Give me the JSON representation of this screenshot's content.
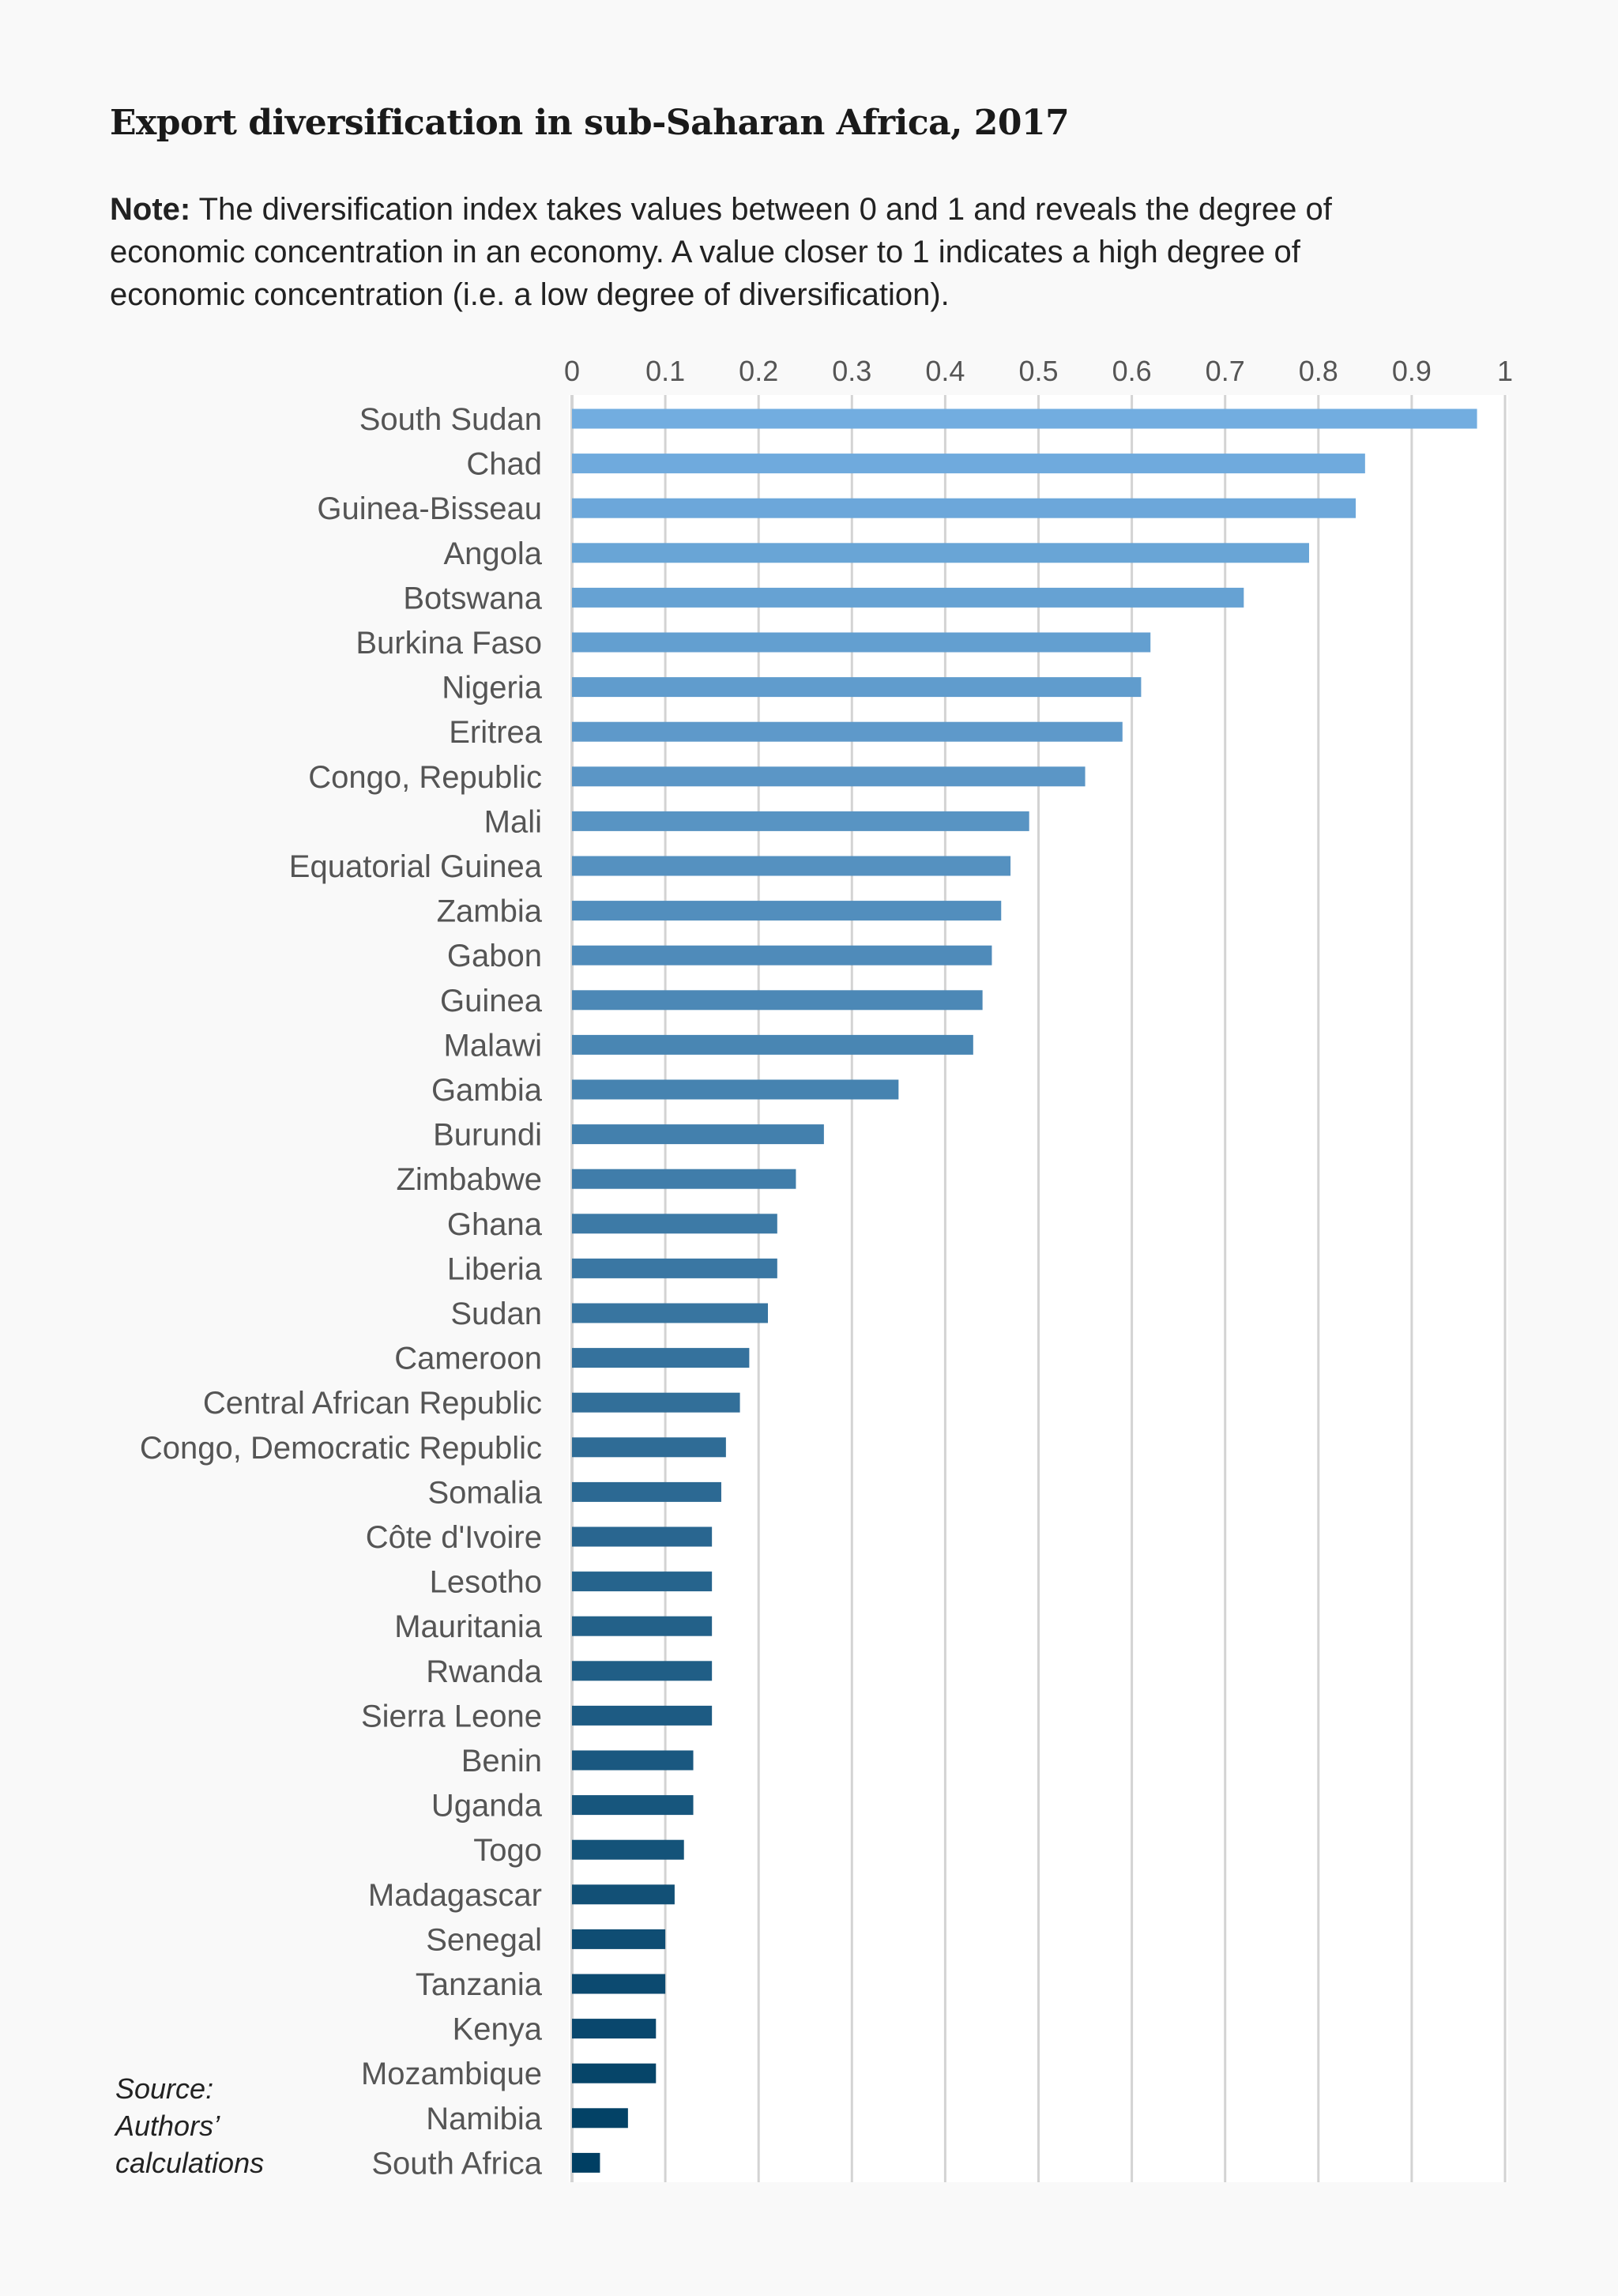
{
  "chart_data": {
    "type": "bar",
    "orientation": "horizontal",
    "title": "Export diversification in sub-Saharan Africa, 2017",
    "note_label": "Note:",
    "note_text": "The diversification index takes values between 0 and 1 and reveals the degree of economic concentration in an economy. A value closer to 1 indicates a high degree of economic concentration (i.e. a low degree of diversification).",
    "source_lines": [
      "Source:",
      "Authors’",
      "calculations"
    ],
    "xlim": [
      0,
      1
    ],
    "ticks": [
      "0",
      "0.1",
      "0.2",
      "0.3",
      "0.4",
      "0.5",
      "0.6",
      "0.7",
      "0.8",
      "0.9",
      "1"
    ],
    "tick_values": [
      0,
      0.1,
      0.2,
      0.3,
      0.4,
      0.5,
      0.6,
      0.7,
      0.8,
      0.9,
      1
    ],
    "axis_position": "top",
    "grid": true,
    "categories": [
      "South Sudan",
      "Chad",
      "Guinea-Bisseau",
      "Angola",
      "Botswana",
      "Burkina Faso",
      "Nigeria",
      "Eritrea",
      "Congo, Republic",
      "Mali",
      "Equatorial Guinea",
      "Zambia",
      "Gabon",
      "Guinea",
      "Malawi",
      "Gambia",
      "Burundi",
      "Zimbabwe",
      "Ghana",
      "Liberia",
      "Sudan",
      "Cameroon",
      "Central African Republic",
      "Congo, Democratic Republic",
      "Somalia",
      "Côte d'Ivoire",
      "Lesotho",
      "Mauritania",
      "Rwanda",
      "Sierra Leone",
      "Benin",
      "Uganda",
      "Togo",
      "Madagascar",
      "Senegal",
      "Tanzania",
      "Kenya",
      "Mozambique",
      "Namibia",
      "South Africa"
    ],
    "values": [
      0.97,
      0.85,
      0.84,
      0.79,
      0.72,
      0.62,
      0.61,
      0.59,
      0.55,
      0.49,
      0.47,
      0.46,
      0.45,
      0.44,
      0.43,
      0.35,
      0.27,
      0.24,
      0.22,
      0.22,
      0.21,
      0.19,
      0.18,
      0.165,
      0.16,
      0.15,
      0.15,
      0.15,
      0.15,
      0.15,
      0.13,
      0.13,
      0.12,
      0.11,
      0.1,
      0.1,
      0.09,
      0.09,
      0.06,
      0.03
    ],
    "color_start": "#72ade0",
    "color_end": "#003f63",
    "grid_color": "#d3d3d3",
    "label_color": "#555555"
  }
}
